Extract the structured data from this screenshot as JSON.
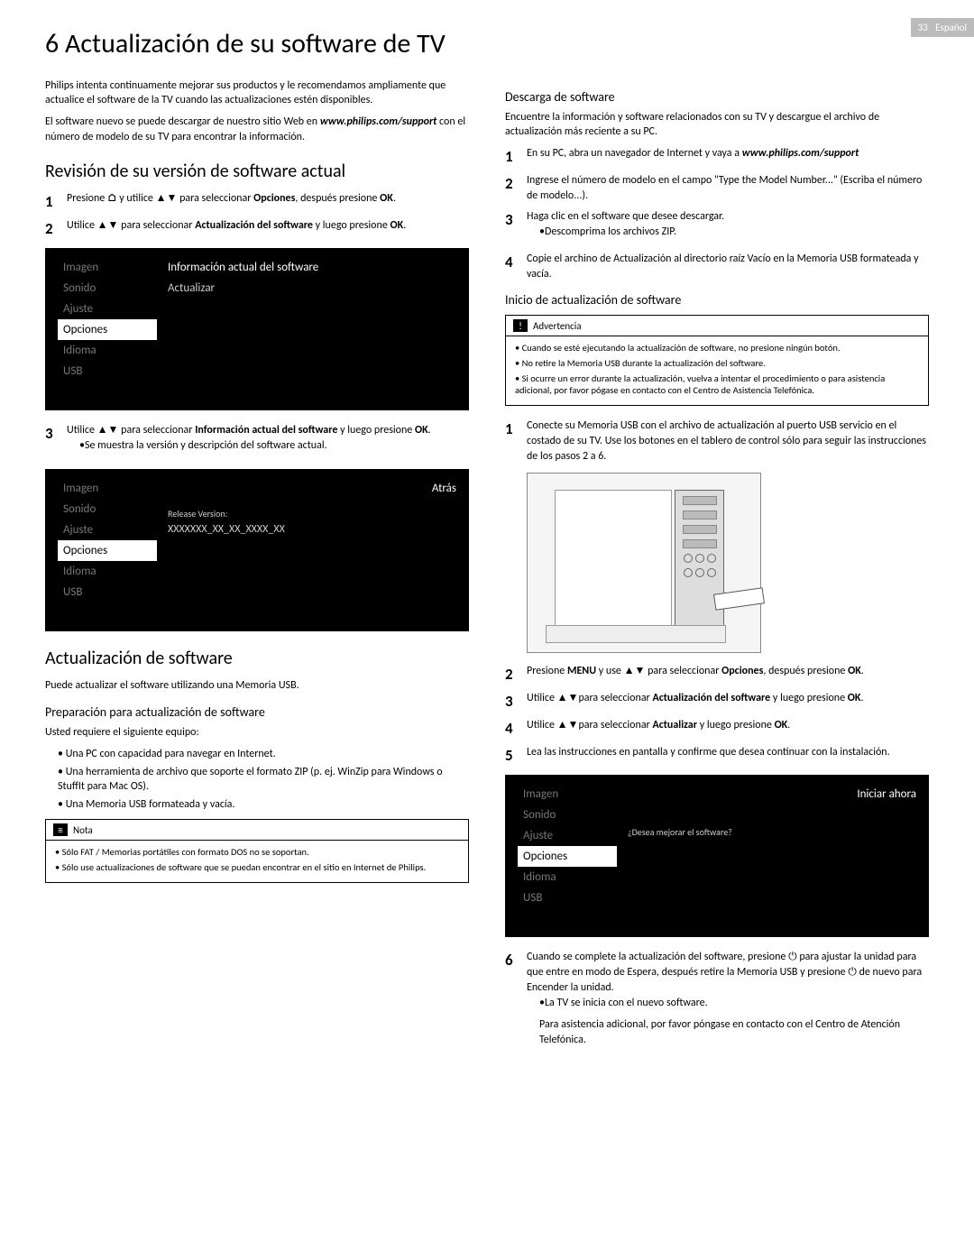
{
  "page_tag": {
    "num": "33",
    "lang": "Español"
  },
  "title": "6 Actualización de su software de TV",
  "intro": {
    "p1": "Philips intenta continuamente mejorar sus productos y le recomendamos ampliamente que actualice el software de la TV cuando las actualizaciones estén disponibles.",
    "p2_a": "El software nuevo se puede descargar de nuestro sitio Web en ",
    "p2_url": "www.philips.com/support",
    "p2_b": " con el número de modelo de su TV para encontrar la información."
  },
  "left": {
    "h2_rev": "Revisión de su versión de software actual",
    "steps_rev": [
      {
        "n": "1",
        "txt_a": "Presione ",
        "txt_b": " y utilice ",
        "txt_c": " para seleccionar ",
        "bold": "Opciones",
        "txt_d": ", después presione ",
        "bold2": "OK",
        "txt_e": "."
      },
      {
        "n": "2",
        "txt_a": "Utilice ",
        "txt_b": "para seleccionar ",
        "bold": "Actualización del software",
        "txt_c": " y luego presione ",
        "bold2": "OK",
        "txt_d": "."
      }
    ],
    "screen1": {
      "menu": [
        "Imagen",
        "Sonido",
        "Ajuste",
        "Opciones",
        "Idioma",
        "USB"
      ],
      "sel": "Opciones",
      "right": [
        "Información actual del software",
        "Actualizar"
      ]
    },
    "step3": {
      "n": "3",
      "txt_a": "Utilice ",
      "txt_b": "para seleccionar ",
      "bold": "Información actual del software",
      "txt_c": " y luego presione ",
      "bold2": "OK",
      "txt_d": "."
    },
    "step3_sub": "Se muestra la versión y descripción del software actual.",
    "screen2": {
      "menu": [
        "Imagen",
        "Sonido",
        "Ajuste",
        "Opciones",
        "Idioma",
        "USB"
      ],
      "sel": "Opciones",
      "right_top_l": "",
      "right_top_r": "Atrás",
      "release_label": "Release Version:",
      "release_val": "XXXXXXX_XX_XX_XXXX_XX"
    },
    "h2_act": "Actualización de software",
    "act_p": "Puede actualizar el software utilizando una Memoria USB.",
    "h3_prep": "Preparación para actualización de software",
    "prep_p": "Usted requiere el siguiente equipo:",
    "prep_list": [
      "Una PC con capacidad para navegar en Internet.",
      "Una herramienta de archivo que soporte el formato ZIP (p. ej. WinZip para Windows o StuffIt para Mac OS).",
      "Una Memoria USB formateada y vacía."
    ],
    "note_title": "Nota",
    "note_items": [
      "Sólo FAT / Memorias portátiles con formato DOS no se soportan.",
      "Sólo use actualizaciones de software que se puedan encontrar en el sitio en Internet de Philips."
    ]
  },
  "right": {
    "h3_desc": "Descarga de software",
    "desc_p": "Encuentre la información y software relacionados con su TV y descargue el archivo de actualización más reciente a su PC.",
    "desc_steps": [
      {
        "n": "1",
        "txt_a": "En su PC, abra un navegador de Internet y vaya a ",
        "ital": "www.philips.com/support"
      },
      {
        "n": "2",
        "txt": "Ingrese el número de modelo en el campo \"Type the Model Number...\" (Escriba el número de modelo...)."
      },
      {
        "n": "3",
        "txt": "Haga clic en el software que desee descargar.",
        "sub": "Descomprima los archivos ZIP."
      },
      {
        "n": "4",
        "txt": "Copie el archino de Actualización al directorio raíz Vacío en la Memoria USB formateada y vacía."
      }
    ],
    "h3_init": "Inicio de actualización de software",
    "warn_title": "Advertencia",
    "warn_items": [
      "Cuando se esté ejecutando la actualización de software, no presione ningún botón.",
      "No retire la Memoria USB durante la actualización del software.",
      "Si ocurre un error durante la actualización, vuelva a intentar el procedimiento o para asistencia adicional, por favor pógase en contacto con el Centro de Asistencia Telefónica."
    ],
    "init_step1": {
      "n": "1",
      "txt": "Conecte su Memoria USB con el archivo de actualización al puerto USB servicio en el costado de su TV. Use los botones en el tablero de control sólo para seguir las instrucciones de los pasos 2 a 6."
    },
    "post_steps": [
      {
        "n": "2",
        "a": "Presione ",
        "b1": "MENU",
        "c": " y use ",
        "d": " para seleccionar ",
        "b2": "Opciones",
        "e": ", después presione ",
        "b3": "OK",
        "f": "."
      },
      {
        "n": "3",
        "a": "Utilice ",
        "b": "para seleccionar ",
        "b1": "Actualización del software",
        "c": " y luego presione ",
        "b2": "OK",
        "d": "."
      },
      {
        "n": "4",
        "a": "Utilice ",
        "b": "para seleccionar ",
        "b1": "Actualizar",
        "c": " y luego presione ",
        "b2": "OK",
        "d": "."
      },
      {
        "n": "5",
        "txt": "Lea las instrucciones en pantalla y confirme que desea continuar con la instalación."
      }
    ],
    "screen3": {
      "menu": [
        "Imagen",
        "Sonido",
        "Ajuste",
        "Opciones",
        "Idioma",
        "USB"
      ],
      "sel": "Opciones",
      "right_top": "Iniciar ahora",
      "right_q": "¿Desea mejorar el software?"
    },
    "step6": {
      "n": "6",
      "a": "Cuando se complete la actualización del software, presione ",
      "b": " para ajustar la unidad para que entre en modo de Espera, después retire la Memoria USB y presione ",
      "c": " de nuevo para Encender la unidad.",
      "sub1": "La TV se inicia con el nuevo software.",
      "sub2": "Para asistencia adicional, por favor póngase en contacto con el Centro de Atención Telefónica."
    }
  },
  "icons": {
    "home": "⌂",
    "up": "▲",
    "dn": "▼",
    "power": "⏻",
    "warn": "!",
    "note": "≡"
  }
}
